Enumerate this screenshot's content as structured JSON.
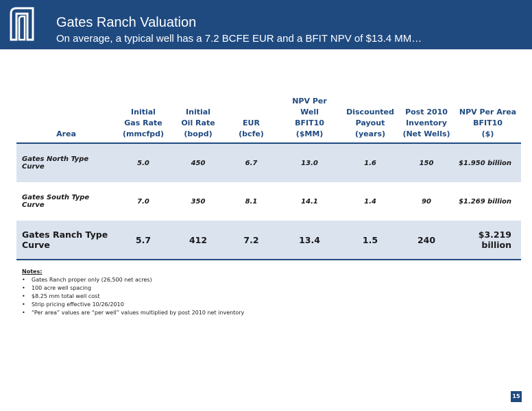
{
  "header": {
    "title": "Gates Ranch Valuation",
    "subtitle": "On average, a typical well has a 7.2 BCFE EUR and a BFIT NPV of $13.4 MM…",
    "logo_icon": "company-logo-icon"
  },
  "table": {
    "columns": [
      {
        "lines": [
          "Area"
        ]
      },
      {
        "lines": [
          "Initial",
          "Gas Rate",
          "(mmcfpd)"
        ]
      },
      {
        "lines": [
          "Initial",
          "Oil Rate",
          "(bopd)"
        ]
      },
      {
        "lines": [
          "EUR",
          "(bcfe)"
        ]
      },
      {
        "lines": [
          "NPV Per",
          "Well",
          "BFIT10",
          "($MM)"
        ]
      },
      {
        "lines": [
          "Discounted",
          "Payout",
          "(years)"
        ]
      },
      {
        "lines": [
          "Post 2010",
          "Inventory",
          "(Net Wells)"
        ]
      },
      {
        "lines": [
          "NPV Per Area",
          "BFIT10",
          "($)"
        ]
      }
    ],
    "rows": [
      [
        "Gates North Type Curve",
        "5.0",
        "450",
        "6.7",
        "13.0",
        "1.6",
        "150",
        "$1.950 billion"
      ],
      [
        "Gates South Type Curve",
        "7.0",
        "350",
        "8.1",
        "14.1",
        "1.4",
        "90",
        "$1.269 billion"
      ],
      [
        "Gates Ranch Type Curve",
        "5.7",
        "412",
        "7.2",
        "13.4",
        "1.5",
        "240",
        "$3.219 billion"
      ]
    ]
  },
  "notes": {
    "heading": "Notes:",
    "bullet": "•",
    "items": [
      "Gates Ranch proper only (26,500 net acres)",
      "100 acre well spacing",
      "$8.25 mm total well cost",
      "Strip pricing effective 10/26/2010",
      "“Per area” values are “per well” values multiplied by post 2010 net inventory"
    ]
  },
  "footer": {
    "page_number": "15"
  },
  "colors": {
    "brand_blue": "#1f4a80",
    "row_shade": "#dbe3ef"
  }
}
